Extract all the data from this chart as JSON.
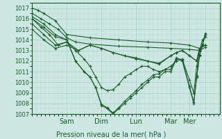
{
  "title": "",
  "xlabel": "Pression niveau de la mer( hPa )",
  "ylabel": "",
  "ylim": [
    1007,
    1017.5
  ],
  "yticks": [
    1007,
    1008,
    1009,
    1010,
    1011,
    1012,
    1013,
    1014,
    1015,
    1016,
    1017
  ],
  "xlim": [
    0,
    130
  ],
  "xtick_positions": [
    24,
    48,
    72,
    96,
    109,
    120
  ],
  "xtick_labels": [
    "Sam",
    "Dim",
    "Lun",
    "Mar",
    "Mer",
    ""
  ],
  "bg_color": "#cde8e2",
  "line_color": "#1a5c2a",
  "grid_color_major": "#aaccc5",
  "grid_color_minor": "#bdd9d4",
  "lines": [
    [
      0,
      1017.0,
      4,
      1016.8,
      8,
      1016.5,
      16,
      1015.8,
      24,
      1014.5,
      40,
      1014.2,
      60,
      1014.0,
      80,
      1013.8,
      96,
      1013.7,
      109,
      1013.5,
      116,
      1013.2,
      120,
      1013.5
    ],
    [
      0,
      1016.5,
      6,
      1016.0,
      12,
      1015.5,
      18,
      1015.0,
      24,
      1014.2,
      30,
      1013.8,
      40,
      1013.6,
      60,
      1013.4,
      80,
      1013.3,
      96,
      1013.2,
      109,
      1013.1,
      116,
      1013.0,
      120,
      1013.3
    ],
    [
      0,
      1016.2,
      8,
      1015.5,
      16,
      1014.5,
      24,
      1014.0,
      30,
      1012.0,
      36,
      1011.0,
      40,
      1010.5,
      44,
      1009.5,
      48,
      1007.8,
      52,
      1007.5,
      56,
      1007.0,
      60,
      1007.5,
      64,
      1008.0,
      68,
      1008.5,
      72,
      1009.0,
      76,
      1009.5,
      80,
      1010.0,
      84,
      1010.5,
      88,
      1010.5,
      92,
      1011.0,
      96,
      1011.0,
      100,
      1012.2,
      104,
      1012.0,
      109,
      1009.5,
      112,
      1008.0,
      114,
      1010.5,
      116,
      1012.5,
      118,
      1013.5,
      120,
      1014.5
    ],
    [
      0,
      1016.0,
      8,
      1015.2,
      16,
      1014.3,
      24,
      1014.0,
      30,
      1012.0,
      36,
      1011.0,
      40,
      1010.5,
      44,
      1009.5,
      48,
      1007.9,
      52,
      1007.6,
      56,
      1007.1,
      60,
      1007.6,
      64,
      1008.2,
      68,
      1008.7,
      72,
      1009.2,
      76,
      1009.8,
      80,
      1010.2,
      84,
      1010.7,
      88,
      1010.8,
      92,
      1011.2,
      96,
      1011.2,
      100,
      1012.3,
      104,
      1012.1,
      109,
      1009.6,
      112,
      1008.1,
      114,
      1010.6,
      116,
      1012.6,
      118,
      1013.6,
      120,
      1014.6
    ],
    [
      0,
      1015.5,
      8,
      1014.5,
      16,
      1013.5,
      24,
      1013.8,
      32,
      1013.0,
      40,
      1013.5,
      48,
      1013.2,
      56,
      1012.8,
      64,
      1012.5,
      72,
      1012.3,
      80,
      1012.0,
      88,
      1011.8,
      96,
      1012.5,
      100,
      1012.8,
      104,
      1013.0,
      109,
      1012.5,
      114,
      1012.0,
      116,
      1013.2,
      120,
      1013.5
    ],
    [
      0,
      1015.0,
      8,
      1014.0,
      16,
      1013.2,
      24,
      1013.5,
      32,
      1013.0,
      40,
      1013.5,
      48,
      1013.2,
      56,
      1012.8,
      64,
      1012.5,
      72,
      1012.2,
      80,
      1012.0,
      88,
      1011.7,
      96,
      1012.5,
      100,
      1012.8,
      104,
      1013.0,
      109,
      1012.5,
      114,
      1012.0,
      116,
      1013.2,
      120,
      1013.5
    ],
    [
      0,
      1016.0,
      6,
      1015.2,
      12,
      1014.5,
      18,
      1013.5,
      24,
      1013.8,
      30,
      1013.0,
      36,
      1012.2,
      40,
      1011.5,
      44,
      1010.5,
      48,
      1009.5,
      52,
      1009.2,
      56,
      1009.3,
      60,
      1009.8,
      64,
      1010.5,
      68,
      1010.8,
      72,
      1011.2,
      76,
      1011.5,
      80,
      1011.5,
      84,
      1011.2,
      88,
      1011.0,
      92,
      1011.2,
      96,
      1011.5,
      100,
      1012.0,
      104,
      1012.2,
      109,
      1010.2,
      112,
      1009.0,
      114,
      1011.5,
      116,
      1013.0,
      118,
      1014.0,
      120,
      1014.3
    ]
  ]
}
